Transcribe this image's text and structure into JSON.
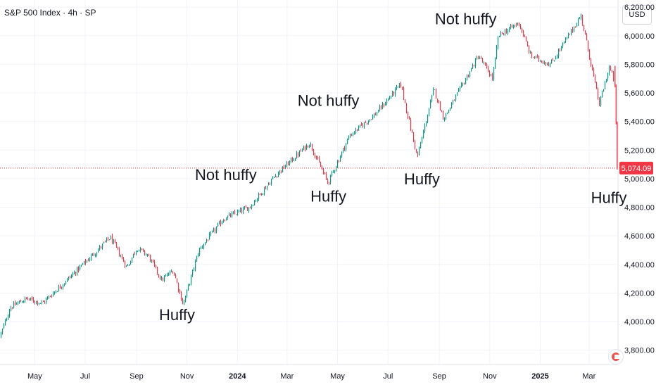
{
  "header": {
    "title": "S&P 500 Index · 4h · SP",
    "currency": "USD"
  },
  "colors": {
    "up": "#089981",
    "down": "#f23645",
    "last_price_bg": "#f23645",
    "grid": "#f0f3fa"
  },
  "chart_data": {
    "type": "candlestick",
    "title": "S&P 500 Index · 4h · SP",
    "ylim": [
      3700,
      6250
    ],
    "y_ticks": [
      {
        "value": 3800,
        "label": "3,800.00"
      },
      {
        "value": 4000,
        "label": "4,000.00"
      },
      {
        "value": 4200,
        "label": "4,200.00"
      },
      {
        "value": 4400,
        "label": "4,400.00"
      },
      {
        "value": 4600,
        "label": "4,600.00"
      },
      {
        "value": 4800,
        "label": "4,800.00"
      },
      {
        "value": 5000,
        "label": "5,000.00"
      },
      {
        "value": 5200,
        "label": "5,200.00"
      },
      {
        "value": 5400,
        "label": "5,400.00"
      },
      {
        "value": 5600,
        "label": "5,600.00"
      },
      {
        "value": 5800,
        "label": "5,800.00"
      },
      {
        "value": 6000,
        "label": "6,000.00"
      },
      {
        "value": 6200,
        "label": "6,200.00"
      }
    ],
    "x_ticks": [
      {
        "label": "May",
        "bold": false
      },
      {
        "label": "Jul",
        "bold": false
      },
      {
        "label": "Sep",
        "bold": false
      },
      {
        "label": "Nov",
        "bold": false
      },
      {
        "label": "2024",
        "bold": true
      },
      {
        "label": "Mar",
        "bold": false
      },
      {
        "label": "May",
        "bold": false
      },
      {
        "label": "Jul",
        "bold": false
      },
      {
        "label": "Sep",
        "bold": false
      },
      {
        "label": "Nov",
        "bold": false
      },
      {
        "label": "2025",
        "bold": true
      },
      {
        "label": "Mar",
        "bold": false
      }
    ],
    "x_range": [
      "2023-03-20",
      "2025-04-05"
    ],
    "x_tick_dates": [
      "2023-05-01",
      "2023-07-01",
      "2023-09-01",
      "2023-11-01",
      "2024-01-01",
      "2024-03-01",
      "2024-05-01",
      "2024-07-01",
      "2024-09-01",
      "2024-11-01",
      "2025-01-01",
      "2025-03-01"
    ],
    "price_path": [
      {
        "date": "2023-03-20",
        "close": 3900
      },
      {
        "date": "2023-04-01",
        "close": 4100
      },
      {
        "date": "2023-04-20",
        "close": 4160
      },
      {
        "date": "2023-05-10",
        "close": 4130
      },
      {
        "date": "2023-06-10",
        "close": 4300
      },
      {
        "date": "2023-07-05",
        "close": 4440
      },
      {
        "date": "2023-07-31",
        "close": 4590
      },
      {
        "date": "2023-08-20",
        "close": 4380
      },
      {
        "date": "2023-09-01",
        "close": 4515
      },
      {
        "date": "2023-09-15",
        "close": 4460
      },
      {
        "date": "2023-10-01",
        "close": 4290
      },
      {
        "date": "2023-10-15",
        "close": 4360
      },
      {
        "date": "2023-10-27",
        "close": 4120
      },
      {
        "date": "2023-11-15",
        "close": 4500
      },
      {
        "date": "2023-12-15",
        "close": 4720
      },
      {
        "date": "2024-01-15",
        "close": 4800
      },
      {
        "date": "2024-02-15",
        "close": 5020
      },
      {
        "date": "2024-03-28",
        "close": 5250
      },
      {
        "date": "2024-04-19",
        "close": 4970
      },
      {
        "date": "2024-05-15",
        "close": 5300
      },
      {
        "date": "2024-06-15",
        "close": 5450
      },
      {
        "date": "2024-07-16",
        "close": 5660
      },
      {
        "date": "2024-08-05",
        "close": 5150
      },
      {
        "date": "2024-08-25",
        "close": 5630
      },
      {
        "date": "2024-09-06",
        "close": 5420
      },
      {
        "date": "2024-10-18",
        "close": 5860
      },
      {
        "date": "2024-11-04",
        "close": 5700
      },
      {
        "date": "2024-11-11",
        "close": 6000
      },
      {
        "date": "2024-12-06",
        "close": 6090
      },
      {
        "date": "2024-12-20",
        "close": 5860
      },
      {
        "date": "2025-01-13",
        "close": 5800
      },
      {
        "date": "2025-02-19",
        "close": 6140
      },
      {
        "date": "2025-03-13",
        "close": 5520
      },
      {
        "date": "2025-03-25",
        "close": 5780
      },
      {
        "date": "2025-04-02",
        "close": 5650
      },
      {
        "date": "2025-04-03",
        "close": 5390
      },
      {
        "date": "2025-04-04",
        "close": 5074.09
      }
    ],
    "last_price": {
      "value": 5074.09,
      "label": "5,074.09"
    },
    "annotations": [
      {
        "text": "Huffy",
        "date": "2023-10-20",
        "value": 4010
      },
      {
        "text": "Not huffy",
        "date": "2023-12-18",
        "value": 4990
      },
      {
        "text": "Huffy",
        "date": "2024-04-20",
        "value": 4840
      },
      {
        "text": "Not huffy",
        "date": "2024-04-20",
        "value": 5510
      },
      {
        "text": "Huffy",
        "date": "2024-08-11",
        "value": 4960
      },
      {
        "text": "Not huffy",
        "date": "2024-10-03",
        "value": 6080
      },
      {
        "text": "Huffy",
        "date": "2025-03-25",
        "value": 4830
      }
    ]
  }
}
